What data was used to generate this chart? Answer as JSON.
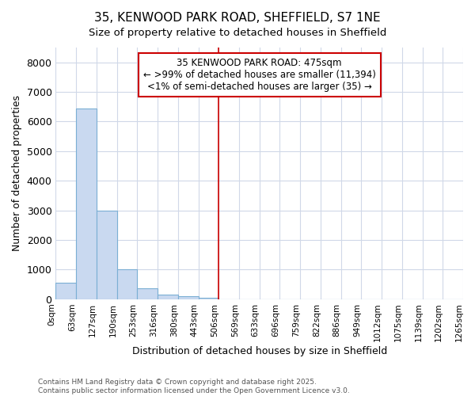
{
  "title": "35, KENWOOD PARK ROAD, SHEFFIELD, S7 1NE",
  "subtitle": "Size of property relative to detached houses in Sheffield",
  "xlabel": "Distribution of detached houses by size in Sheffield",
  "ylabel": "Number of detached properties",
  "bar_values": [
    550,
    6450,
    2980,
    1000,
    380,
    165,
    90,
    50,
    0,
    0,
    0,
    0,
    0,
    0,
    0,
    0,
    0,
    0,
    0,
    0
  ],
  "bar_color": "#c9d9f0",
  "bar_edge_color": "#7bafd4",
  "tick_labels": [
    "0sqm",
    "63sqm",
    "127sqm",
    "190sqm",
    "253sqm",
    "316sqm",
    "380sqm",
    "443sqm",
    "506sqm",
    "569sqm",
    "633sqm",
    "696sqm",
    "759sqm",
    "822sqm",
    "886sqm",
    "949sqm",
    "1012sqm",
    "1075sqm",
    "1139sqm",
    "1202sqm",
    "1265sqm"
  ],
  "ylim": [
    0,
    8500
  ],
  "yticks": [
    0,
    1000,
    2000,
    3000,
    4000,
    5000,
    6000,
    7000,
    8000
  ],
  "red_line_x": 8.0,
  "annotation_text_line1": "35 KENWOOD PARK ROAD: 475sqm",
  "annotation_text_line2": "← >99% of detached houses are smaller (11,394)",
  "annotation_text_line3": "<1% of semi-detached houses are larger (35) →",
  "annotation_box_edge_color": "#cc0000",
  "footer_text": "Contains HM Land Registry data © Crown copyright and database right 2025.\nContains public sector information licensed under the Open Government Licence v3.0.",
  "background_color": "#ffffff",
  "plot_bg_color": "#ffffff",
  "grid_color": "#d0d8e8"
}
